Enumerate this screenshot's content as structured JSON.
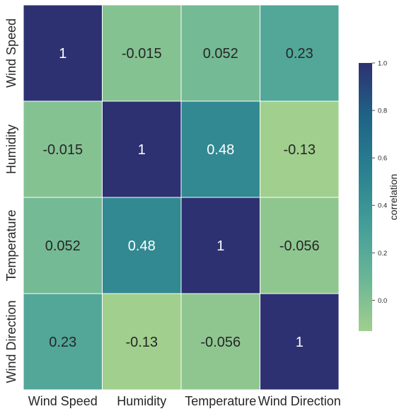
{
  "chart_data": {
    "type": "heatmap",
    "title": "",
    "xlabel": "",
    "ylabel": "",
    "x_categories": [
      "Wind Speed",
      "Humidity",
      "Temperature",
      "Wind Direction"
    ],
    "y_categories": [
      "Wind Speed",
      "Humidity",
      "Temperature",
      "Wind Direction"
    ],
    "values": [
      [
        1,
        -0.015,
        0.052,
        0.23
      ],
      [
        -0.015,
        1,
        0.48,
        -0.13
      ],
      [
        0.052,
        0.48,
        1,
        -0.056
      ],
      [
        0.23,
        -0.13,
        -0.056,
        1
      ]
    ],
    "value_labels": [
      [
        "1",
        "-0.015",
        "0.052",
        "0.23"
      ],
      [
        "-0.015",
        "1",
        "0.48",
        "-0.13"
      ],
      [
        "0.052",
        "0.48",
        "1",
        "-0.056"
      ],
      [
        "0.23",
        "-0.13",
        "-0.056",
        "1"
      ]
    ],
    "colorbar": {
      "label": "correlation",
      "vmin": -0.13,
      "vmax": 1.0,
      "ticks": [
        0.0,
        0.2,
        0.4,
        0.6,
        0.8,
        1.0
      ],
      "tick_labels": [
        "0.0",
        "0.2",
        "0.4",
        "0.6",
        "0.8",
        "1.0"
      ],
      "placement": "right"
    },
    "colormap": "crest",
    "colormap_stops": [
      "#a1cf8d",
      "#69b597",
      "#439d98",
      "#2a8090",
      "#1e6386",
      "#2d3171"
    ],
    "grid": false
  }
}
